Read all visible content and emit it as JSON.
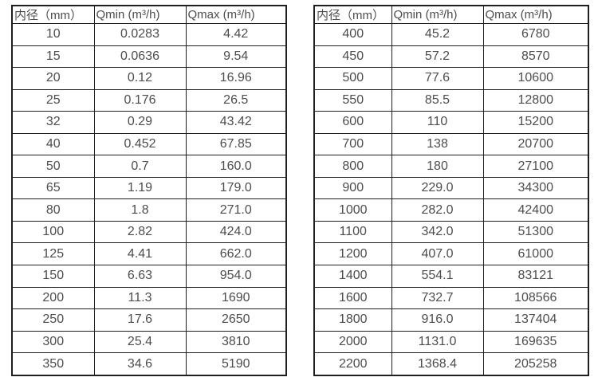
{
  "colors": {
    "background": "#ffffff",
    "text": "#4d4d4d",
    "border": "#1f1f1f"
  },
  "tables": [
    {
      "name": "flow-table-small-diameters",
      "headers": [
        "内径（mm）",
        "Qmin (m³/h)",
        "Qmax (m³/h)"
      ],
      "rows": [
        [
          "10",
          "0.0283",
          "4.42"
        ],
        [
          "15",
          "0.0636",
          "9.54"
        ],
        [
          "20",
          "0.12",
          "16.96"
        ],
        [
          "25",
          "0.176",
          "26.5"
        ],
        [
          "32",
          "0.29",
          "43.42"
        ],
        [
          "40",
          "0.452",
          "67.85"
        ],
        [
          "50",
          "0.7",
          "160.0"
        ],
        [
          "65",
          "1.19",
          "179.0"
        ],
        [
          "80",
          "1.8",
          "271.0"
        ],
        [
          "100",
          "2.82",
          "424.0"
        ],
        [
          "125",
          "4.41",
          "662.0"
        ],
        [
          "150",
          "6.63",
          "954.0"
        ],
        [
          "200",
          "11.3",
          "1690"
        ],
        [
          "250",
          "17.6",
          "2650"
        ],
        [
          "300",
          "25.4",
          "3810"
        ],
        [
          "350",
          "34.6",
          "5190"
        ]
      ]
    },
    {
      "name": "flow-table-large-diameters",
      "headers": [
        "内径（mm）",
        "Qmin (m³/h)",
        "Qmax (m³/h)"
      ],
      "rows": [
        [
          "400",
          "45.2",
          "6780"
        ],
        [
          "450",
          "57.2",
          "8570"
        ],
        [
          "500",
          "77.6",
          "10600"
        ],
        [
          "550",
          "85.5",
          "12800"
        ],
        [
          "600",
          "110",
          "15200"
        ],
        [
          "700",
          "138",
          "20700"
        ],
        [
          "800",
          "180",
          "27100"
        ],
        [
          "900",
          "229.0",
          "34300"
        ],
        [
          "1000",
          "282.0",
          "42400"
        ],
        [
          "1100",
          "342.0",
          "51300"
        ],
        [
          "1200",
          "407.0",
          "61000"
        ],
        [
          "1400",
          "554.1",
          "83121"
        ],
        [
          "1600",
          "732.7",
          "108566"
        ],
        [
          "1800",
          "916.0",
          "137404"
        ],
        [
          "2000",
          "1131.0",
          "169635"
        ],
        [
          "2200",
          "1368.4",
          "205258"
        ]
      ]
    }
  ]
}
